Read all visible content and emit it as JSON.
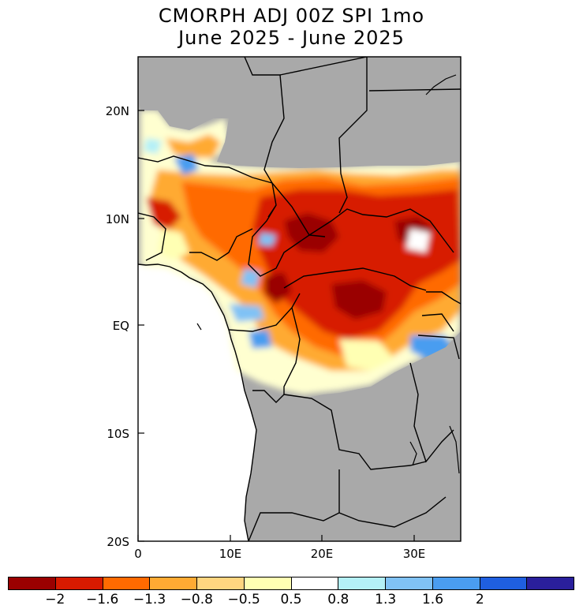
{
  "title": {
    "line1": "CMORPH ADJ 00Z SPI 1mo",
    "line2": "June 2025 - June 2025"
  },
  "axes": {
    "lat_labels": [
      "20N",
      "10N",
      "EQ",
      "10S",
      "20S"
    ],
    "lon_labels": [
      "0",
      "10E",
      "20E",
      "30E"
    ],
    "lat_range": [
      -20,
      25
    ],
    "lon_range": [
      0,
      35
    ]
  },
  "colors": {
    "land_missing": "#a9a9a9",
    "ocean": "#ffffff"
  },
  "colorbar": {
    "colors": [
      "#9a0000",
      "#d71a00",
      "#ff6a00",
      "#ffaa33",
      "#ffd580",
      "#ffffb3",
      "#ffffff",
      "#b4f0f7",
      "#80c2f5",
      "#4a9df0",
      "#1f5fe0",
      "#2a1f9c"
    ],
    "tick_labels": [
      "-2",
      "-1.6",
      "-1.3",
      "-0.8",
      "-0.5",
      "0.5",
      "0.8",
      "1.3",
      "1.6",
      "2"
    ]
  }
}
